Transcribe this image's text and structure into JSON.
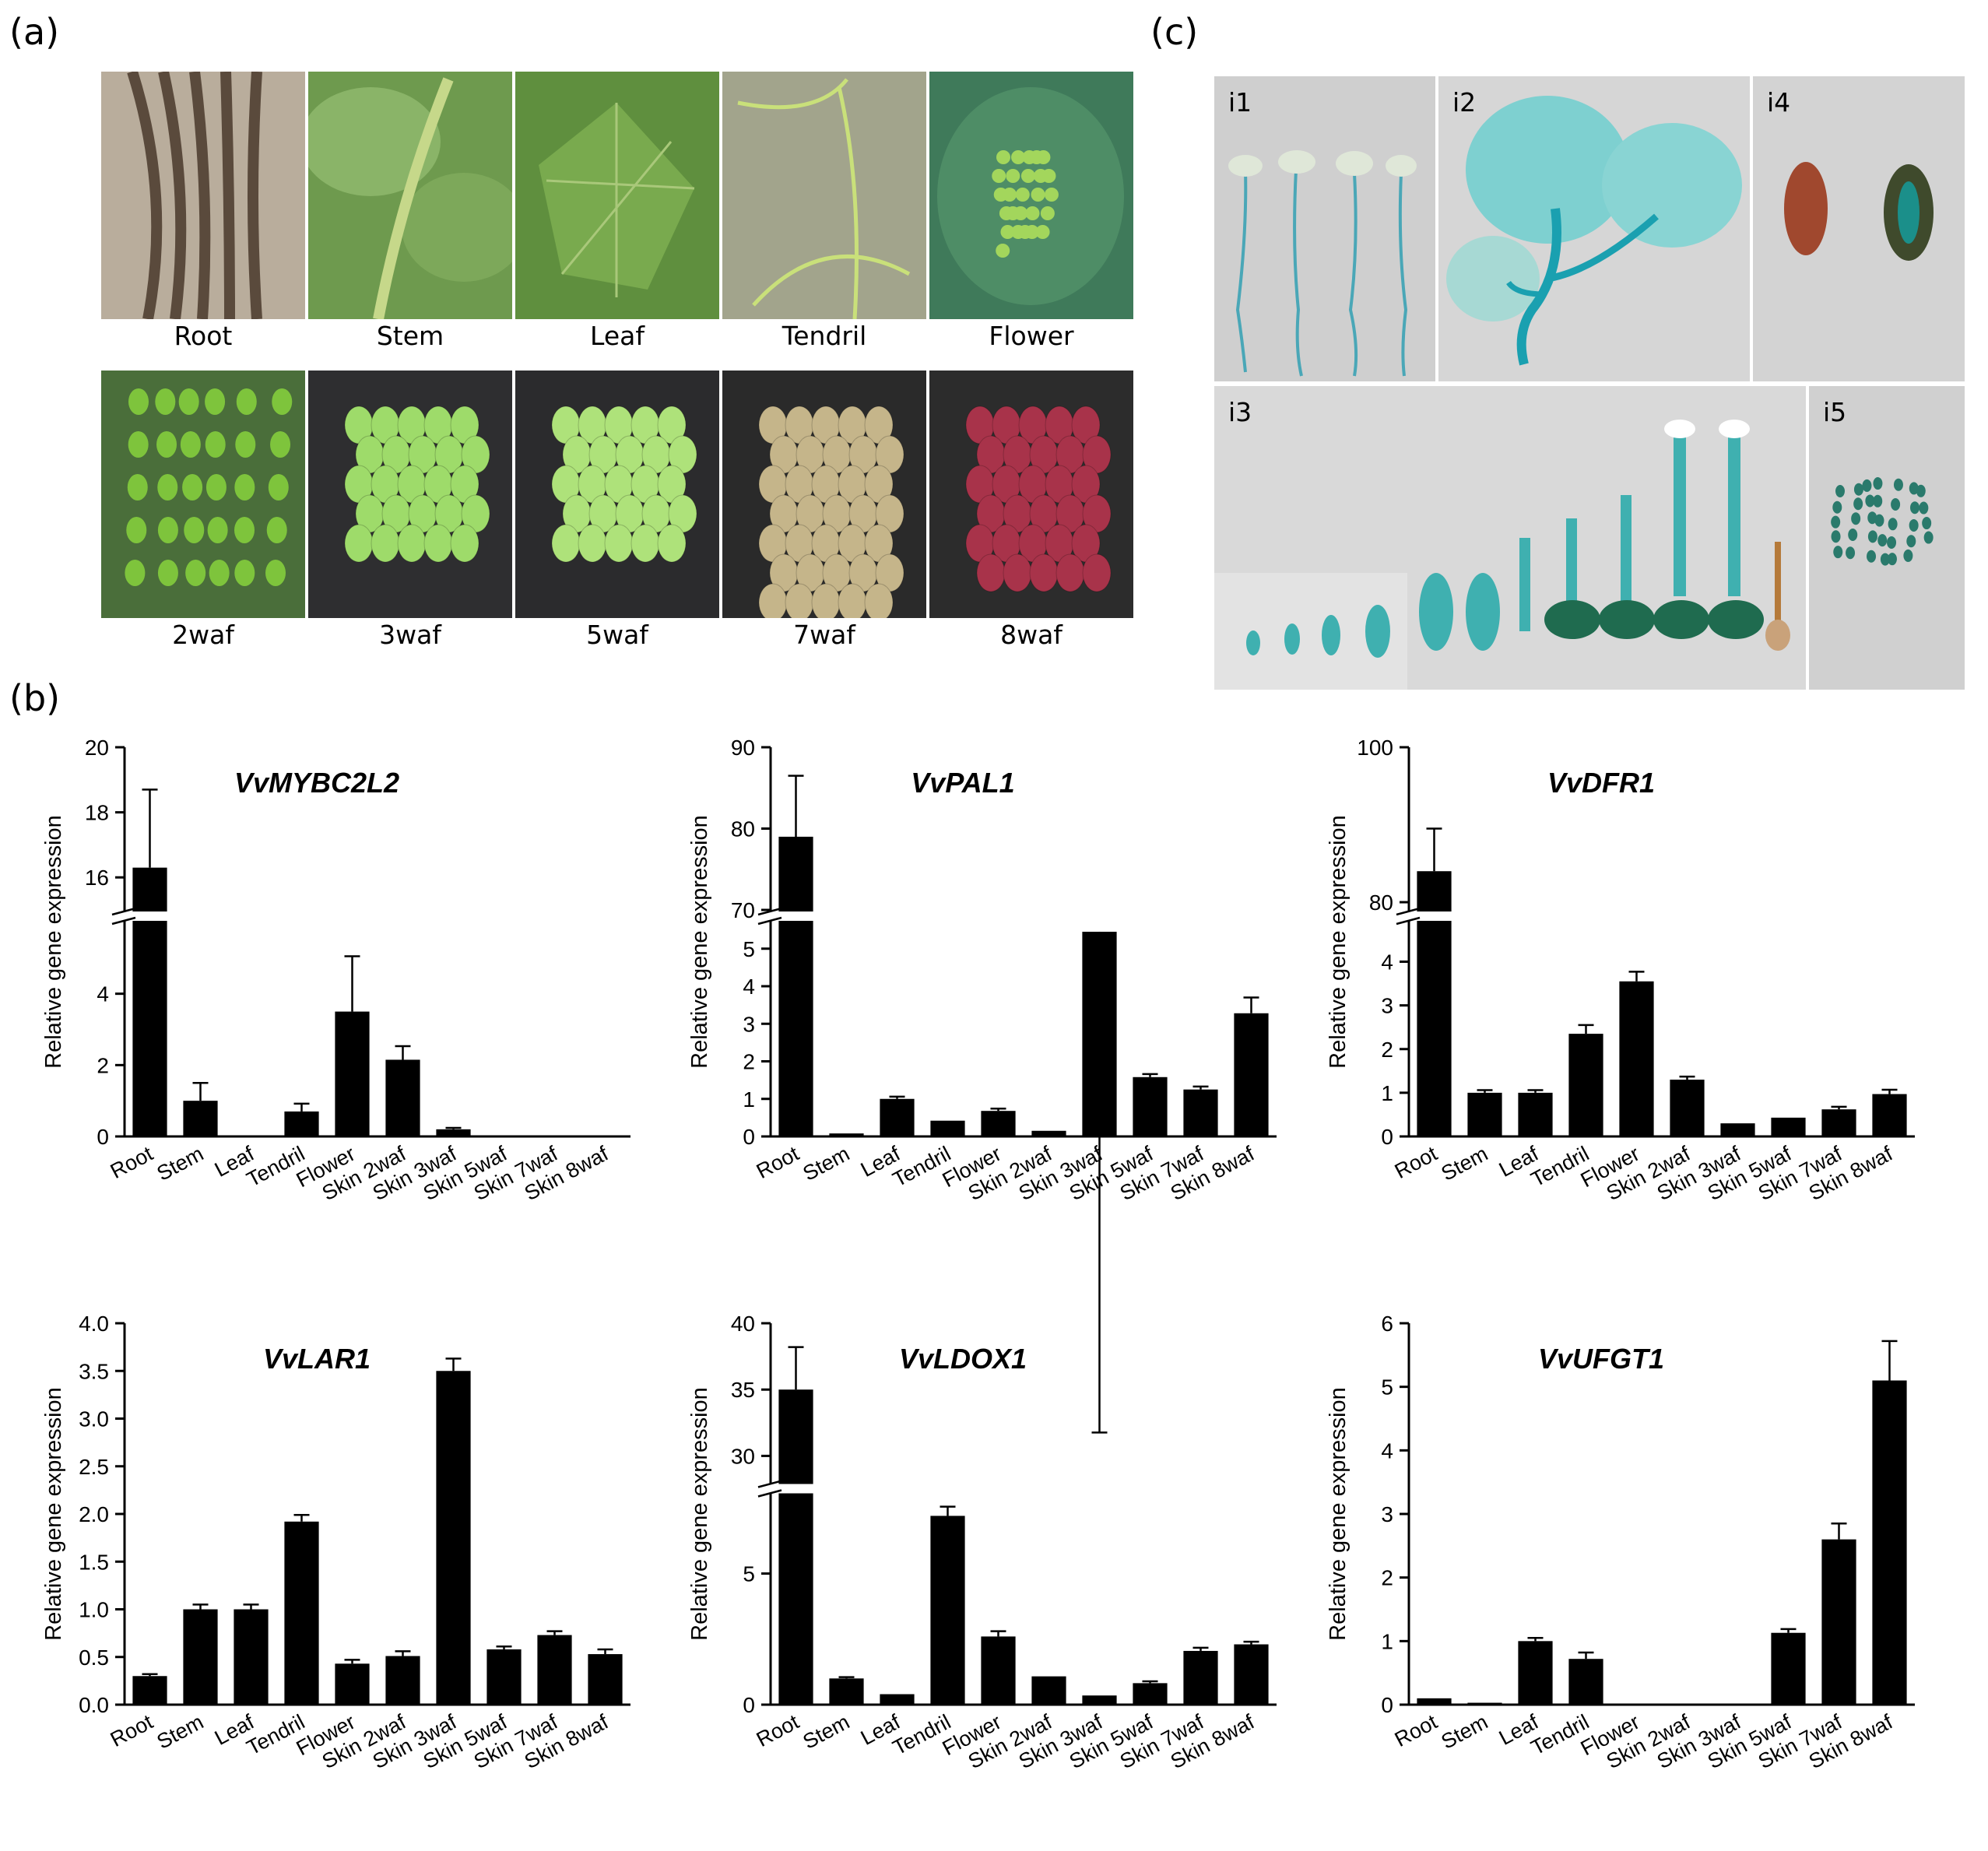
{
  "panel_labels": {
    "a": "(a)",
    "b": "(b)",
    "c": "(c)"
  },
  "panel_a": {
    "top_row": [
      "Root",
      "Stem",
      "Leaf",
      "Tendril",
      "Flower"
    ],
    "bottom_row": [
      "2waf",
      "3waf",
      "5waf",
      "7waf",
      "8waf"
    ]
  },
  "panel_c": {
    "tiles": [
      "i1",
      "i2",
      "i4",
      "i3",
      "i5"
    ]
  },
  "colors": {
    "bar": "#000000",
    "photo_bg_dark": "#2b2b2b",
    "gus_blue": "#1aa2a2",
    "grape_green": "#8fd64a",
    "grape_red": "#a8334a"
  },
  "chart_data": [
    {
      "type": "bar",
      "title": "VvMYBC2L2",
      "ylabel": "Relative gene expression",
      "categories": [
        "Root",
        "Stem",
        "Leaf",
        "Tendril",
        "Flower",
        "Skin 2waf",
        "Skin 3waf",
        "Skin 5waf",
        "Skin 7waf",
        "Skin 8waf"
      ],
      "values": [
        16.3,
        1.0,
        0.02,
        0.7,
        3.5,
        2.15,
        0.2,
        0.0,
        0.0,
        0.0
      ],
      "errors": [
        2.4,
        0.5,
        0.0,
        0.22,
        1.55,
        0.38,
        0.04,
        0.0,
        0.0,
        0.0
      ],
      "axis_break": true,
      "lower_range": [
        0,
        6
      ],
      "upper_range": [
        15,
        20
      ],
      "lower_ticks": [
        "0",
        "2",
        "4"
      ],
      "upper_ticks": [
        "16",
        "18",
        "20"
      ]
    },
    {
      "type": "bar",
      "title": "VvPAL1",
      "ylabel": "Relative gene expression",
      "categories": [
        "Root",
        "Stem",
        "Leaf",
        "Tendril",
        "Flower",
        "Skin 2waf",
        "Skin 3waf",
        "Skin 5waf",
        "Skin 7waf",
        "Skin 8waf"
      ],
      "values": [
        79.0,
        0.08,
        1.0,
        0.42,
        0.68,
        0.15,
        5.45,
        1.58,
        1.25,
        3.28
      ],
      "errors": [
        7.5,
        0.0,
        0.06,
        0.0,
        0.06,
        0.0,
        0.3,
        0.08,
        0.08,
        0.42
      ],
      "axis_break": true,
      "lower_range": [
        0,
        5.7
      ],
      "upper_range": [
        70,
        90
      ],
      "lower_ticks": [
        "0",
        "1",
        "2",
        "3",
        "4",
        "5"
      ],
      "upper_ticks": [
        "70",
        "80",
        "90"
      ]
    },
    {
      "type": "bar",
      "title": "VvDFR1",
      "ylabel": "Relative gene expression",
      "categories": [
        "Root",
        "Stem",
        "Leaf",
        "Tendril",
        "Flower",
        "Skin 2waf",
        "Skin 3waf",
        "Skin 5waf",
        "Skin 7waf",
        "Skin 8waf"
      ],
      "values": [
        84.0,
        1.0,
        1.0,
        2.35,
        3.55,
        1.3,
        0.3,
        0.43,
        0.62,
        0.97
      ],
      "errors": [
        5.5,
        0.06,
        0.06,
        0.2,
        0.22,
        0.07,
        0.0,
        0.0,
        0.06,
        0.1
      ],
      "axis_break": true,
      "lower_range": [
        0,
        4.9
      ],
      "upper_range": [
        79,
        100
      ],
      "lower_ticks": [
        "0",
        "1",
        "2",
        "3",
        "4"
      ],
      "upper_ticks": [
        "80",
        "100"
      ]
    },
    {
      "type": "bar",
      "title": "VvLAR1",
      "ylabel": "Relative gene expression",
      "categories": [
        "Root",
        "Stem",
        "Leaf",
        "Tendril",
        "Flower",
        "Skin 2waf",
        "Skin 3waf",
        "Skin 5waf",
        "Skin 7waf",
        "Skin 8waf"
      ],
      "values": [
        0.3,
        1.0,
        1.0,
        1.92,
        0.43,
        0.51,
        3.5,
        0.58,
        0.73,
        0.53
      ],
      "errors": [
        0.02,
        0.05,
        0.05,
        0.07,
        0.04,
        0.05,
        0.13,
        0.03,
        0.04,
        0.05
      ],
      "axis_break": false,
      "ylim": [
        0,
        4.0
      ],
      "ticks": [
        "0.0",
        "0.5",
        "1.0",
        "1.5",
        "2.0",
        "2.5",
        "3.0",
        "3.5",
        "4.0"
      ]
    },
    {
      "type": "bar",
      "title": "VvLDOX1",
      "ylabel": "Relative gene expression",
      "categories": [
        "Root",
        "Stem",
        "Leaf",
        "Tendril",
        "Flower",
        "Skin 2waf",
        "Skin 3waf",
        "Skin 5waf",
        "Skin 7waf",
        "Skin 8waf"
      ],
      "values": [
        35.0,
        1.0,
        0.4,
        7.2,
        2.6,
        1.08,
        0.35,
        0.82,
        2.05,
        2.3
      ],
      "errors": [
        3.2,
        0.05,
        0.0,
        0.35,
        0.2,
        0.0,
        0.0,
        0.07,
        0.12,
        0.1
      ],
      "axis_break": true,
      "lower_range": [
        0,
        8
      ],
      "upper_range": [
        28,
        40
      ],
      "lower_ticks": [
        "0",
        "5"
      ],
      "upper_ticks": [
        "30",
        "35",
        "40"
      ]
    },
    {
      "type": "bar",
      "title": "VvUFGT1",
      "ylabel": "Relative gene expression",
      "categories": [
        "Root",
        "Stem",
        "Leaf",
        "Tendril",
        "Flower",
        "Skin 2waf",
        "Skin 3waf",
        "Skin 5waf",
        "Skin 7waf",
        "Skin 8waf"
      ],
      "values": [
        0.1,
        0.03,
        1.0,
        0.72,
        0.0,
        0.0,
        0.0,
        1.13,
        2.6,
        5.1
      ],
      "errors": [
        0.0,
        0.0,
        0.05,
        0.1,
        0.0,
        0.0,
        0.0,
        0.06,
        0.25,
        0.62
      ],
      "axis_break": false,
      "ylim": [
        0,
        6
      ],
      "ticks": [
        "0",
        "1",
        "2",
        "3",
        "4",
        "5",
        "6"
      ]
    }
  ]
}
